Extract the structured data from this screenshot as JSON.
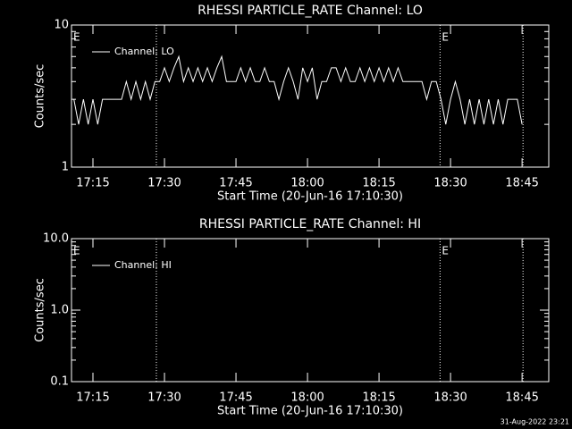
{
  "chart_data": [
    {
      "type": "line",
      "title": "RHESSI PARTICLE_RATE Channel: LO",
      "xlabel": "Start Time (20-Jun-16 17:10:30)",
      "ylabel": "Counts/sec",
      "ylog": true,
      "ylim": [
        1,
        10
      ],
      "yticks": [
        1,
        10
      ],
      "xlim": [
        1030.5,
        1130.6
      ],
      "xticks": [
        {
          "value": 1035,
          "label": "17:15"
        },
        {
          "value": 1050,
          "label": "17:30"
        },
        {
          "value": 1065,
          "label": "17:45"
        },
        {
          "value": 1080,
          "label": "18:00"
        },
        {
          "value": 1095,
          "label": "18:15"
        },
        {
          "value": 1110,
          "label": "18:30"
        },
        {
          "value": 1125,
          "label": "18:45"
        }
      ],
      "vlines": [
        1048.3,
        1107.8,
        1125.2
      ],
      "annotations": [
        {
          "text": "E",
          "x": 1030.5
        },
        {
          "text": "E",
          "x": 1107.8
        }
      ],
      "x": [
        1031,
        1032,
        1033,
        1034,
        1035,
        1036,
        1037,
        1038,
        1039,
        1040,
        1041,
        1042,
        1043,
        1044,
        1045,
        1046,
        1047,
        1048,
        1049,
        1050,
        1051,
        1052,
        1053,
        1054,
        1055,
        1056,
        1057,
        1058,
        1059,
        1060,
        1061,
        1062,
        1063,
        1064,
        1065,
        1066,
        1067,
        1068,
        1069,
        1070,
        1071,
        1072,
        1073,
        1074,
        1075,
        1076,
        1077,
        1078,
        1079,
        1080,
        1081,
        1082,
        1083,
        1084,
        1085,
        1086,
        1087,
        1088,
        1089,
        1090,
        1091,
        1092,
        1093,
        1094,
        1095,
        1096,
        1097,
        1098,
        1099,
        1100,
        1101,
        1102,
        1103,
        1104,
        1105,
        1106,
        1107,
        1108,
        1109,
        1110,
        1111,
        1112,
        1113,
        1114,
        1115,
        1116,
        1117,
        1118,
        1119,
        1120,
        1121,
        1122,
        1123,
        1124,
        1125
      ],
      "series": [
        {
          "name": "Channel: LO",
          "color": "#ffffff",
          "values": [
            3,
            2,
            3,
            2,
            3,
            2,
            3,
            3,
            3,
            3,
            3,
            4,
            3,
            4,
            3,
            4,
            3,
            4,
            4,
            5,
            4,
            5,
            6,
            4,
            5,
            4,
            5,
            4,
            5,
            4,
            5,
            6,
            4,
            4,
            4,
            5,
            4,
            5,
            4,
            4,
            5,
            4,
            4,
            3,
            4,
            5,
            4,
            3,
            5,
            4,
            5,
            3,
            4,
            4,
            5,
            5,
            4,
            5,
            4,
            4,
            5,
            4,
            5,
            4,
            5,
            4,
            5,
            4,
            5,
            4,
            4,
            4,
            4,
            4,
            3,
            4,
            4,
            3,
            2,
            3,
            4,
            3,
            2,
            3,
            2,
            3,
            2,
            3,
            2,
            3,
            2,
            3,
            3,
            3,
            2
          ]
        }
      ]
    },
    {
      "type": "line",
      "title": "RHESSI PARTICLE_RATE Channel: HI",
      "xlabel": "Start Time (20-Jun-16 17:10:30)",
      "ylabel": "Counts/sec",
      "ylog": true,
      "ylim": [
        0.1,
        10
      ],
      "yticks": [
        0.1,
        {
          "value": 1,
          "label": "1.0"
        },
        {
          "value": 10,
          "label": "10.0"
        }
      ],
      "xlim": [
        1030.5,
        1130.6
      ],
      "xticks": [
        {
          "value": 1035,
          "label": "17:15"
        },
        {
          "value": 1050,
          "label": "17:30"
        },
        {
          "value": 1065,
          "label": "17:45"
        },
        {
          "value": 1080,
          "label": "18:00"
        },
        {
          "value": 1095,
          "label": "18:15"
        },
        {
          "value": 1110,
          "label": "18:30"
        },
        {
          "value": 1125,
          "label": "18:45"
        }
      ],
      "vlines": [
        1048.3,
        1107.8,
        1125.2
      ],
      "annotations": [
        {
          "text": "E",
          "x": 1030.5
        },
        {
          "text": "E",
          "x": 1107.8
        }
      ],
      "x": [],
      "series": [
        {
          "name": "Channel: HI",
          "color": "#ffffff",
          "values": []
        }
      ]
    }
  ],
  "footer": "31-Aug-2022 23:21"
}
